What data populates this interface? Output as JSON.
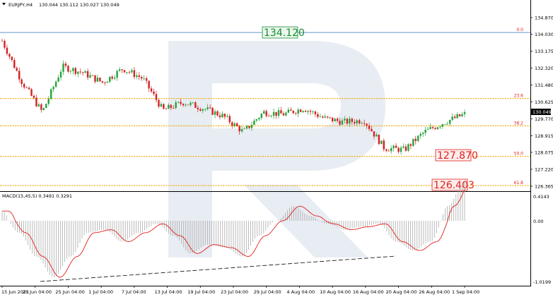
{
  "header": {
    "symbol_timeframe": "EURJPY,H4",
    "ohlc": "130.044 130.112 130.027 130.049",
    "dropdown_icon": "triangle-down-icon"
  },
  "current_price": "130.049",
  "price_axis": {
    "ticks": [
      "134.870",
      "134.030",
      "133.175",
      "132.320",
      "131.480",
      "130.625",
      "129.770",
      "128.915",
      "128.075",
      "127.220",
      "126.365"
    ]
  },
  "fibonacci": [
    {
      "level": "0.0",
      "price": 134.12,
      "color": "#4a86c7"
    },
    {
      "level": "23.6",
      "price": 130.79,
      "color": "#f5a500"
    },
    {
      "level": "38.2",
      "price": 129.41,
      "color": "#f5a500"
    },
    {
      "level": "50.0",
      "price": 127.87,
      "color": "#f5a500"
    },
    {
      "level": "61.8",
      "price": 126.4,
      "color": "#f5a500"
    }
  ],
  "callouts": {
    "top": "134.120",
    "mid": "127.870",
    "bottom": "126.403"
  },
  "macd": {
    "title": "MACD(15,45,5) 0.3491 0.3291",
    "ticks": [
      "0.4143",
      "0.00",
      "-1.0199"
    ]
  },
  "time_axis": [
    "15 Jun 2021",
    "21 Jun 04:00",
    "25 Jun 04:00",
    "1 Jul 04:00",
    "7 Jul 04:00",
    "13 Jul 04:00",
    "19 Jul 04:00",
    "23 Jul 04:00",
    "29 Jul 04:00",
    "4 Aug 04:00",
    "10 Aug 04:00",
    "16 Aug 04:00",
    "20 Aug 04:00",
    "26 Aug 04:00",
    "1 Sep 04:00"
  ],
  "chart_data": {
    "type": "candlestick",
    "symbol": "EURJPY",
    "timeframe": "H4",
    "ylim": [
      126.2,
      135.2
    ],
    "close_path": [
      {
        "x": "15 Jun 2021",
        "y": 133.7
      },
      {
        "x": "18 Jun",
        "y": 131.6
      },
      {
        "x": "20 Jun",
        "y": 130.1
      },
      {
        "x": "23 Jun",
        "y": 132.4
      },
      {
        "x": "26 Jun",
        "y": 132.1
      },
      {
        "x": "29 Jun",
        "y": 131.6
      },
      {
        "x": "1 Jul",
        "y": 132.3
      },
      {
        "x": "4 Jul",
        "y": 131.8
      },
      {
        "x": "7 Jul",
        "y": 130.2
      },
      {
        "x": "10 Jul",
        "y": 130.6
      },
      {
        "x": "13 Jul",
        "y": 130.3
      },
      {
        "x": "17 Jul",
        "y": 129.9
      },
      {
        "x": "20 Jul",
        "y": 129.1
      },
      {
        "x": "23 Jul",
        "y": 130.1
      },
      {
        "x": "27 Jul",
        "y": 130.0
      },
      {
        "x": "30 Jul",
        "y": 130.3
      },
      {
        "x": "4 Aug",
        "y": 129.8
      },
      {
        "x": "7 Aug",
        "y": 129.6
      },
      {
        "x": "11 Aug",
        "y": 129.7
      },
      {
        "x": "16 Aug",
        "y": 128.3
      },
      {
        "x": "19 Aug",
        "y": 128.2
      },
      {
        "x": "23 Aug",
        "y": 129.1
      },
      {
        "x": "27 Aug",
        "y": 129.6
      },
      {
        "x": "31 Aug",
        "y": 130.0
      }
    ],
    "macd_histogram": [
      0.1,
      -0.2,
      -0.6,
      -0.95,
      -0.6,
      -0.2,
      -0.15,
      -0.35,
      -0.2,
      -0.05,
      -0.25,
      -0.55,
      -0.4,
      -0.45,
      -0.6,
      -0.25,
      0.0,
      0.15,
      0.05,
      -0.05,
      -0.15,
      -0.1,
      -0.05,
      -0.35,
      -0.5,
      -0.35,
      0.15,
      0.4
    ]
  }
}
